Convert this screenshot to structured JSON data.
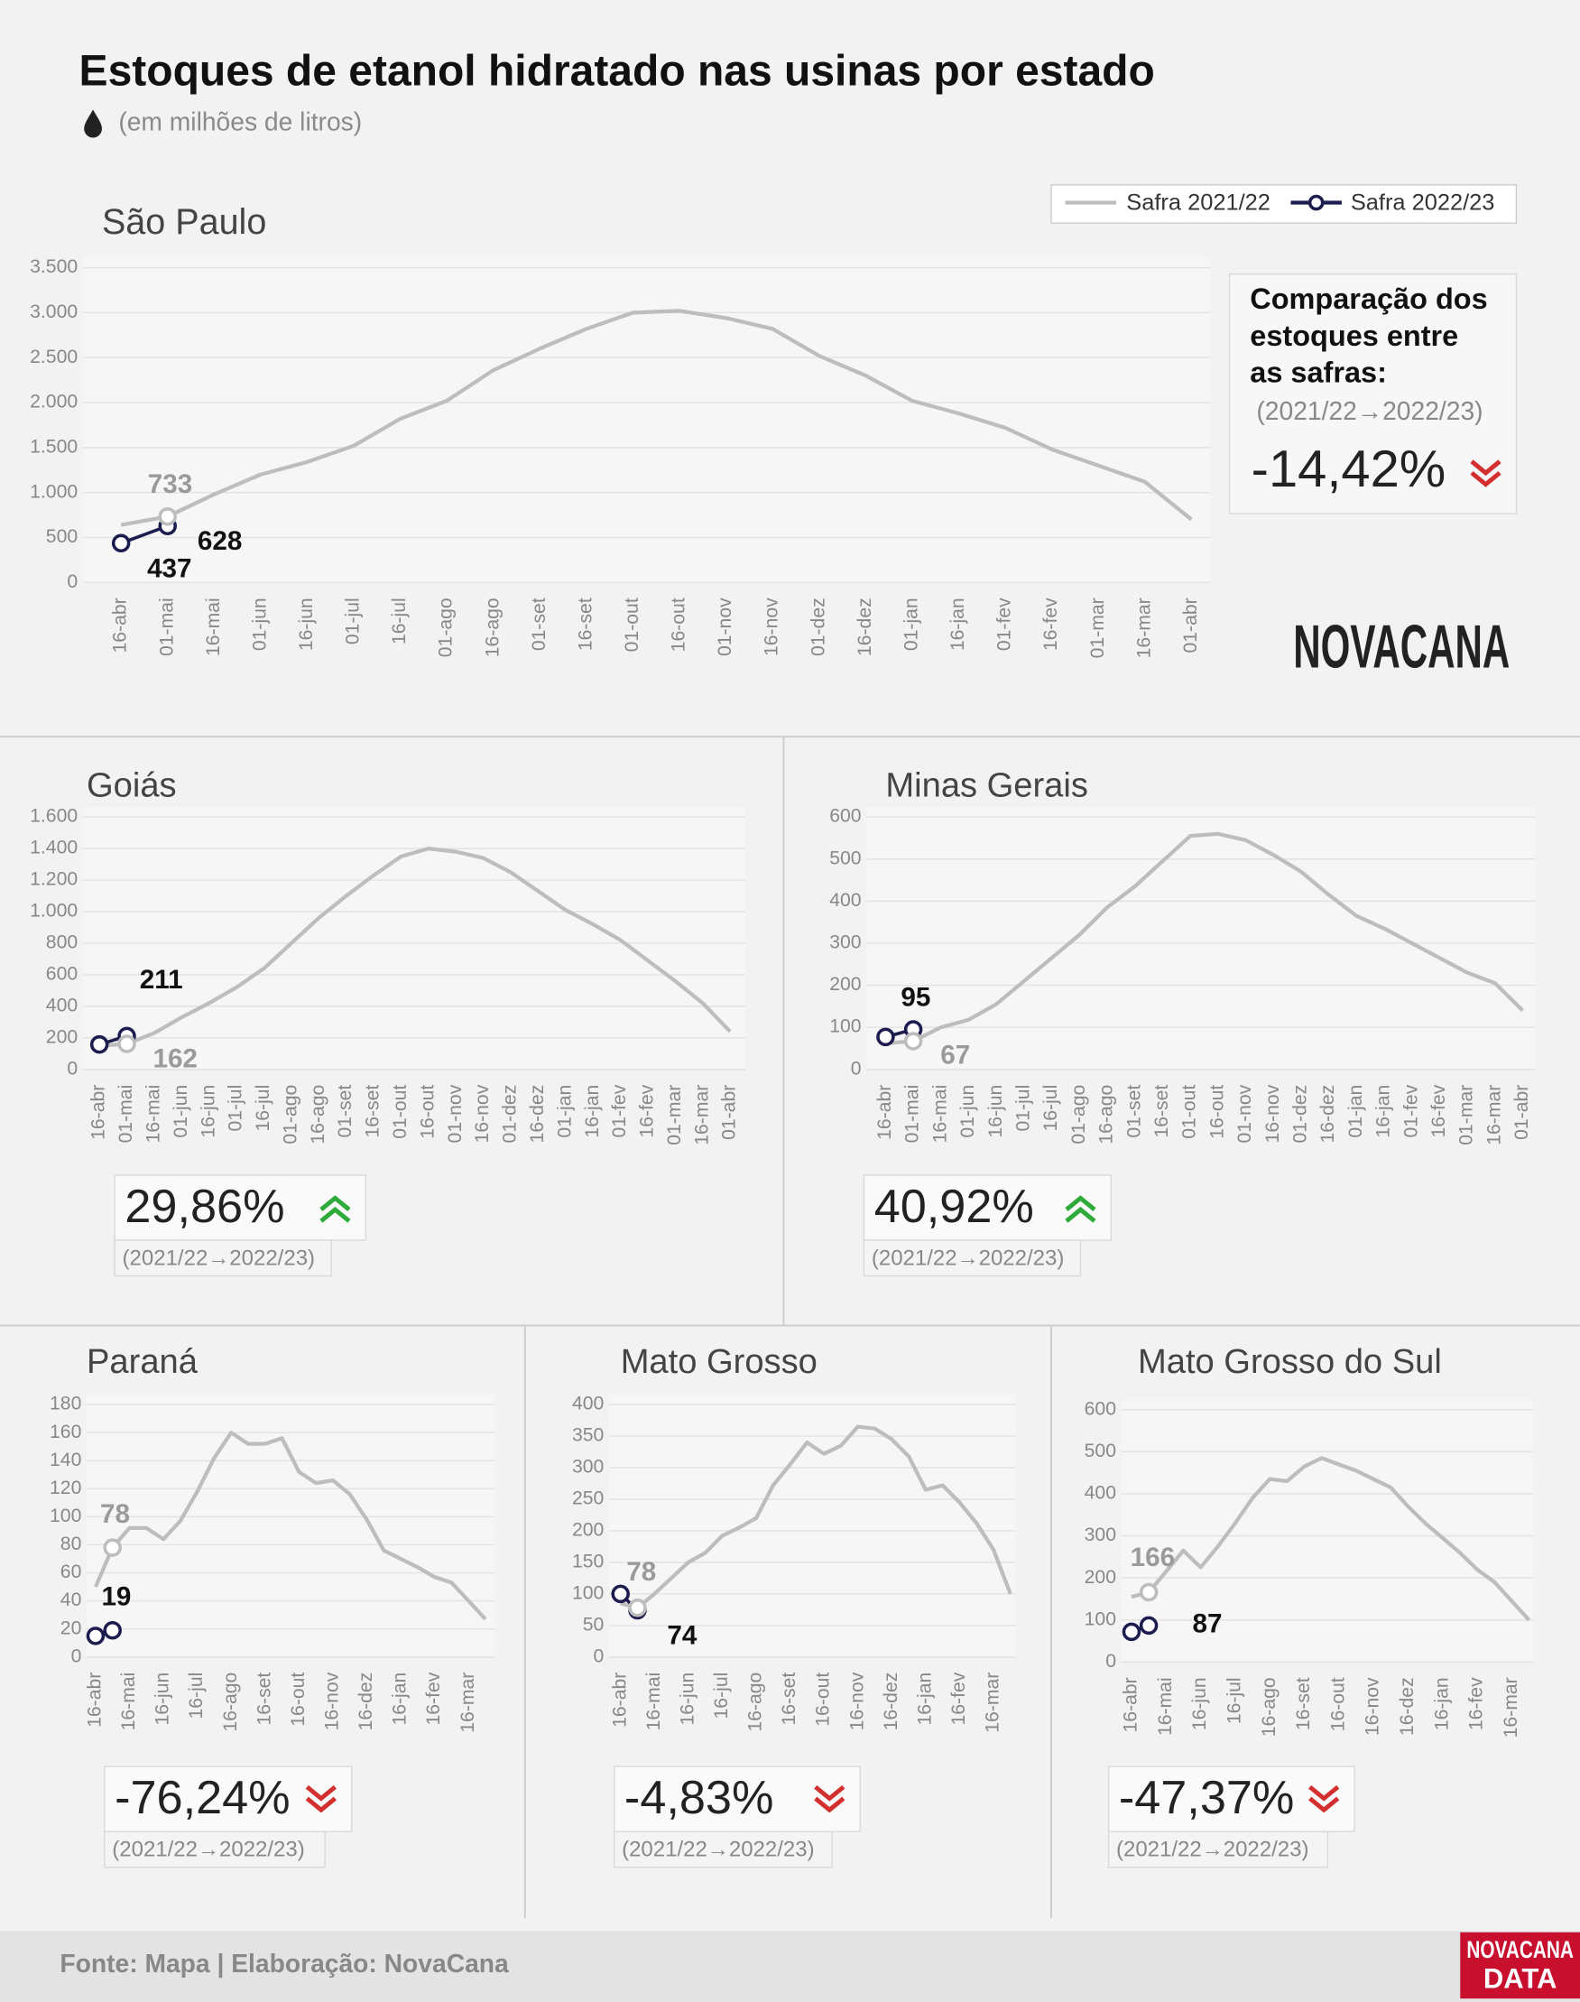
{
  "title": "Estoques de etanol hidratado nas usinas por estado",
  "subtitle": "(em milhões de litros)",
  "comparison_heading": [
    "Comparação dos",
    "estoques entre",
    "as safras:"
  ],
  "logo": "NOVACANA",
  "source": "Fonte: Mapa | Elaboração: NovaCana",
  "footer_logo": [
    "NOVACANA",
    "DATA"
  ],
  "chart_data": [
    {
      "type": "line",
      "title": "São Paulo",
      "change": -14.42,
      "change_label": "-14,42%",
      "period": "(2021/22→2022/23)",
      "categories": [
        "16-abr",
        "01-mai",
        "16-mai",
        "01-jun",
        "16-jun",
        "01-jul",
        "16-jul",
        "01-ago",
        "16-ago",
        "01-set",
        "16-set",
        "01-out",
        "16-out",
        "01-nov",
        "16-nov",
        "01-dez",
        "16-dez",
        "01-jan",
        "16-jan",
        "01-fev",
        "16-fev",
        "01-mar",
        "16-mar",
        "01-abr"
      ],
      "series": [
        {
          "name": "Safra 2021/22",
          "color": "#bdbdbd",
          "values": [
            640,
            733,
            980,
            1200,
            1340,
            1520,
            1820,
            2020,
            2360,
            2600,
            2820,
            3000,
            3020,
            2940,
            2820,
            2520,
            2300,
            2020,
            1880,
            1720,
            1480,
            1300,
            1120,
            700
          ]
        },
        {
          "name": "Safra 2022/23",
          "color": "#1c1c4f",
          "values": [
            437,
            628,
            null,
            null,
            null,
            null,
            null,
            null,
            null,
            null,
            null,
            null,
            null,
            null,
            null,
            null,
            null,
            null,
            null,
            null,
            null,
            null,
            null,
            null
          ]
        }
      ],
      "ylim": [
        0,
        3500
      ],
      "yticks": [
        0,
        500,
        {
          "value": 1000,
          "label": "1.000"
        },
        {
          "value": 1500,
          "label": "1.500"
        },
        {
          "value": 2000,
          "label": "2.000"
        },
        {
          "value": 2500,
          "label": "2.500"
        },
        {
          "value": 3000,
          "label": "3.000"
        },
        {
          "value": 3500,
          "label": "3.500"
        }
      ],
      "grid": true
    },
    {
      "type": "line",
      "title": "Goiás",
      "change": 29.86,
      "change_label": "29,86%",
      "period": "(2021/22→2022/23)",
      "categories": [
        "16-abr",
        "01-mai",
        "16-mai",
        "01-jun",
        "16-jun",
        "01-jul",
        "16-jul",
        "01-ago",
        "16-ago",
        "01-set",
        "16-set",
        "01-out",
        "16-out",
        "01-nov",
        "16-nov",
        "01-dez",
        "16-dez",
        "01-jan",
        "16-jan",
        "01-fev",
        "16-fev",
        "01-mar",
        "16-mar",
        "01-abr"
      ],
      "series": [
        {
          "name": "Safra 2021/22",
          "color": "#bdbdbd",
          "values": [
            150,
            162,
            230,
            330,
            420,
            520,
            640,
            800,
            960,
            1100,
            1230,
            1350,
            1400,
            1380,
            1340,
            1250,
            1130,
            1010,
            920,
            820,
            690,
            560,
            420,
            240
          ]
        },
        {
          "name": "Safra 2022/23",
          "color": "#1c1c4f",
          "values": [
            158,
            211,
            null,
            null,
            null,
            null,
            null,
            null,
            null,
            null,
            null,
            null,
            null,
            null,
            null,
            null,
            null,
            null,
            null,
            null,
            null,
            null,
            null,
            null
          ]
        }
      ],
      "ylim": [
        0,
        1600
      ],
      "yticks": [
        0,
        200,
        400,
        600,
        800,
        {
          "value": 1000,
          "label": "1.000"
        },
        {
          "value": 1200,
          "label": "1.200"
        },
        {
          "value": 1400,
          "label": "1.400"
        },
        {
          "value": 1600,
          "label": "1.600"
        }
      ],
      "grid": true
    },
    {
      "type": "line",
      "title": "Minas Gerais",
      "change": 40.92,
      "change_label": "40,92%",
      "period": "(2021/22→2022/23)",
      "categories": [
        "16-abr",
        "01-mai",
        "16-mai",
        "01-jun",
        "16-jun",
        "01-jul",
        "16-jul",
        "01-ago",
        "16-ago",
        "01-set",
        "16-set",
        "01-out",
        "16-out",
        "01-nov",
        "16-nov",
        "01-dez",
        "16-dez",
        "01-jan",
        "16-jan",
        "01-fev",
        "16-fev",
        "01-mar",
        "16-mar",
        "01-abr"
      ],
      "series": [
        {
          "name": "Safra 2021/22",
          "color": "#bdbdbd",
          "values": [
            62,
            67,
            100,
            118,
            155,
            210,
            265,
            320,
            385,
            435,
            495,
            555,
            560,
            545,
            510,
            470,
            415,
            365,
            335,
            300,
            265,
            230,
            205,
            140
          ]
        },
        {
          "name": "Safra 2022/23",
          "color": "#1c1c4f",
          "values": [
            77,
            95,
            null,
            null,
            null,
            null,
            null,
            null,
            null,
            null,
            null,
            null,
            null,
            null,
            null,
            null,
            null,
            null,
            null,
            null,
            null,
            null,
            null,
            null
          ]
        }
      ],
      "ylim": [
        0,
        600
      ],
      "yticks": [
        0,
        100,
        200,
        300,
        400,
        500,
        600
      ],
      "grid": true
    },
    {
      "type": "line",
      "title": "Paraná",
      "change": -76.24,
      "change_label": "-76,24%",
      "period": "(2021/22→2022/23)",
      "categories": [
        "16-abr",
        null,
        "16-mai",
        null,
        "16-jun",
        null,
        "16-jul",
        null,
        "16-ago",
        null,
        "16-set",
        null,
        "16-out",
        null,
        "16-nov",
        null,
        "16-dez",
        null,
        "16-jan",
        null,
        "16-fev",
        null,
        "16-mar",
        null
      ],
      "series": [
        {
          "name": "Safra 2021/22",
          "color": "#bdbdbd",
          "values": [
            50,
            78,
            92,
            92,
            84,
            97,
            118,
            142,
            160,
            152,
            152,
            156,
            132,
            124,
            126,
            116,
            98,
            76,
            70,
            64,
            57,
            53,
            40,
            27
          ]
        },
        {
          "name": "Safra 2022/23",
          "color": "#1c1c4f",
          "values": [
            15,
            19,
            null,
            null,
            null,
            null,
            null,
            null,
            null,
            null,
            null,
            null,
            null,
            null,
            null,
            null,
            null,
            null,
            null,
            null,
            null,
            null,
            null,
            null
          ]
        }
      ],
      "ylim": [
        0,
        180
      ],
      "yticks": [
        0,
        20,
        40,
        60,
        80,
        100,
        120,
        140,
        160,
        180
      ],
      "grid": true
    },
    {
      "type": "line",
      "title": "Mato Grosso",
      "change": -4.83,
      "change_label": "-4,83%",
      "period": "(2021/22→2022/23)",
      "categories": [
        "16-abr",
        null,
        "16-mai",
        null,
        "16-jun",
        null,
        "16-jul",
        null,
        "16-ago",
        null,
        "16-set",
        null,
        "16-out",
        null,
        "16-nov",
        null,
        "16-dez",
        null,
        "16-jan",
        null,
        "16-fev",
        null,
        "16-mar",
        null
      ],
      "series": [
        {
          "name": "Safra 2021/22",
          "color": "#bdbdbd",
          "values": [
            85,
            78,
            100,
            125,
            150,
            165,
            192,
            205,
            220,
            272,
            305,
            340,
            322,
            335,
            365,
            362,
            345,
            318,
            265,
            272,
            245,
            212,
            170,
            100
          ]
        },
        {
          "name": "Safra 2022/23",
          "color": "#1c1c4f",
          "values": [
            100,
            74,
            null,
            null,
            null,
            null,
            null,
            null,
            null,
            null,
            null,
            null,
            null,
            null,
            null,
            null,
            null,
            null,
            null,
            null,
            null,
            null,
            null,
            null
          ]
        }
      ],
      "ylim": [
        0,
        400
      ],
      "yticks": [
        0,
        50,
        100,
        150,
        200,
        250,
        300,
        350,
        400
      ],
      "grid": true
    },
    {
      "type": "line",
      "title": "Mato Grosso do Sul",
      "change": -47.37,
      "change_label": "-47,37%",
      "period": "(2021/22→2022/23)",
      "categories": [
        "16-abr",
        null,
        "16-mai",
        null,
        "16-jun",
        null,
        "16-jul",
        null,
        "16-ago",
        null,
        "16-set",
        null,
        "16-out",
        null,
        "16-nov",
        null,
        "16-dez",
        null,
        "16-jan",
        null,
        "16-fev",
        null,
        "16-mar",
        null
      ],
      "series": [
        {
          "name": "Safra 2021/22",
          "color": "#bdbdbd",
          "values": [
            155,
            166,
            215,
            265,
            225,
            275,
            330,
            390,
            435,
            430,
            465,
            485,
            470,
            455,
            435,
            415,
            370,
            330,
            295,
            260,
            220,
            190,
            145,
            100
          ]
        },
        {
          "name": "Safra 2022/23",
          "color": "#1c1c4f",
          "values": [
            72,
            87,
            null,
            null,
            null,
            null,
            null,
            null,
            null,
            null,
            null,
            null,
            null,
            null,
            null,
            null,
            null,
            null,
            null,
            null,
            null,
            null,
            null,
            null
          ]
        }
      ],
      "ylim": [
        0,
        600
      ],
      "yticks": [
        0,
        100,
        200,
        300,
        400,
        500,
        600
      ],
      "grid": true
    }
  ]
}
